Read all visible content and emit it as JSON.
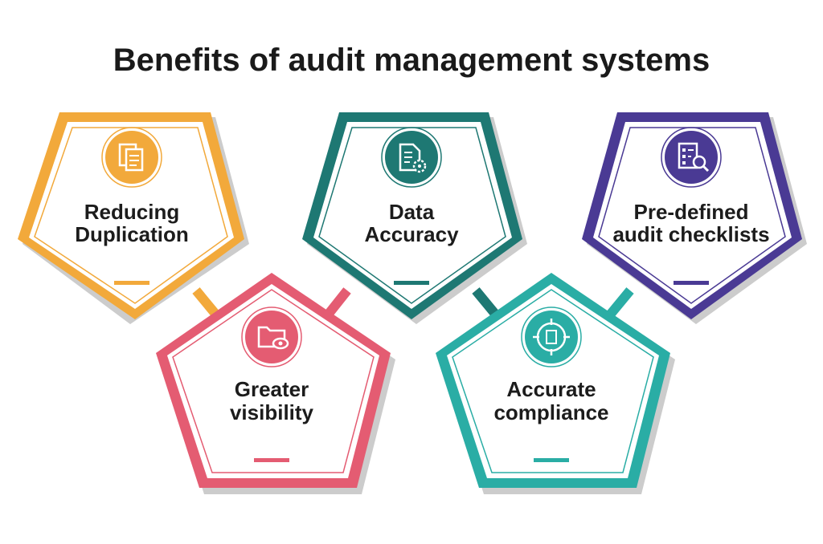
{
  "title": "Benefits of audit management systems",
  "items": [
    {
      "id": "reducing-duplication",
      "label_line1": "Reducing",
      "label_line2": "Duplication",
      "color": "#F2A93B",
      "icon": "documents-icon"
    },
    {
      "id": "greater-visibility",
      "label_line1": "Greater",
      "label_line2": "visibility",
      "color": "#E45C72",
      "icon": "folder-eye-icon"
    },
    {
      "id": "data-accuracy",
      "label_line1": "Data",
      "label_line2": "Accuracy",
      "color": "#1E7873",
      "icon": "document-gear-icon"
    },
    {
      "id": "accurate-compliance",
      "label_line1": "Accurate",
      "label_line2": "compliance",
      "color": "#2AADA5",
      "icon": "target-document-icon"
    },
    {
      "id": "predefined-checklists",
      "label_line1": "Pre-defined",
      "label_line2": "audit checklists",
      "color": "#4A3A94",
      "icon": "checklist-magnifier-icon"
    }
  ]
}
